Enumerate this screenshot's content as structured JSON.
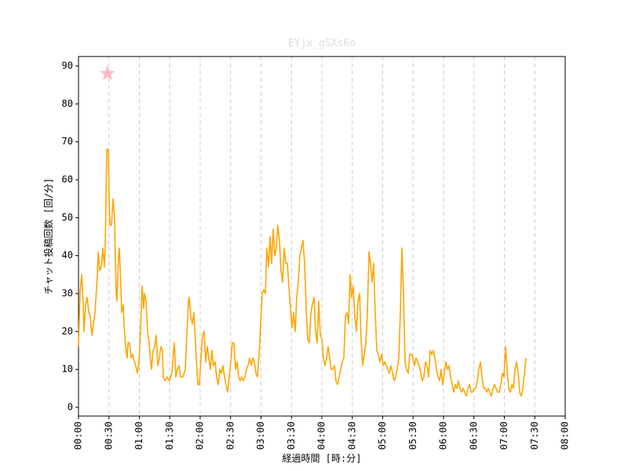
{
  "chart_data": {
    "type": "line",
    "title": "EYjx_gSXs6o",
    "x_label": "経過時間 [時:分]",
    "y_label": "チャット投稿回数 [回/分]",
    "color": "#ffa500",
    "grid": "x",
    "xlim": [
      0,
      480
    ],
    "ylim": [
      -2.3,
      92.5
    ],
    "xticks": [
      {
        "value": 0,
        "label": "00:00"
      },
      {
        "value": 30,
        "label": "00:30"
      },
      {
        "value": 60,
        "label": "01:00"
      },
      {
        "value": 90,
        "label": "01:30"
      },
      {
        "value": 120,
        "label": "02:00"
      },
      {
        "value": 150,
        "label": "02:30"
      },
      {
        "value": 180,
        "label": "03:00"
      },
      {
        "value": 210,
        "label": "03:30"
      },
      {
        "value": 240,
        "label": "04:00"
      },
      {
        "value": 270,
        "label": "04:30"
      },
      {
        "value": 300,
        "label": "05:00"
      },
      {
        "value": 330,
        "label": "05:30"
      },
      {
        "value": 360,
        "label": "06:00"
      },
      {
        "value": 390,
        "label": "06:30"
      },
      {
        "value": 420,
        "label": "07:00"
      },
      {
        "value": 450,
        "label": "07:30"
      },
      {
        "value": 480,
        "label": "08:00"
      }
    ],
    "yticks": [
      0,
      10,
      20,
      30,
      40,
      50,
      60,
      70,
      80,
      90
    ],
    "markers": [
      {
        "x": 28.6,
        "y": 88,
        "color": "#ffb6c1"
      }
    ],
    "x": [
      0,
      1.5,
      3.1,
      4.6,
      5.4,
      7.0,
      8.5,
      10.1,
      11.6,
      13.2,
      14.7,
      16.3,
      18.6,
      19.4,
      20.9,
      22.5,
      24.0,
      25.5,
      26.3,
      27.1,
      27.9,
      29.4,
      30.2,
      31.0,
      32.5,
      34.1,
      35.6,
      36.4,
      37.2,
      37.9,
      39.5,
      40.3,
      41.8,
      42.6,
      44.1,
      44.9,
      46.5,
      48.0,
      48.8,
      50.3,
      51.9,
      53.4,
      55.0,
      56.5,
      58.1,
      59.6,
      61.2,
      62.7,
      64.3,
      65.0,
      66.6,
      68.1,
      69.7,
      71.2,
      72.0,
      73.5,
      75.1,
      76.6,
      78.2,
      79.7,
      81.3,
      82.8,
      83.6,
      85.2,
      87.5,
      89.8,
      92.1,
      93.7,
      94.5,
      96.0,
      97.5,
      99.1,
      100.6,
      103.0,
      105.3,
      106.8,
      108.4,
      109.2,
      110.7,
      112.3,
      113.8,
      115.4,
      116.1,
      117.7,
      119.2,
      120.8,
      122.3,
      123.9,
      125.4,
      127.0,
      128.5,
      130.1,
      131.6,
      133.2,
      134.7,
      136.3,
      137.8,
      139.4,
      140.9,
      142.5,
      144.0,
      145.5,
      147.1,
      148.6,
      150.2,
      151.7,
      153.3,
      154.8,
      156.4,
      157.9,
      159.5,
      161.0,
      162.6,
      164.1,
      165.7,
      167.2,
      168.8,
      170.3,
      171.9,
      173.4,
      175.0,
      176.5,
      178.1,
      179.6,
      181.2,
      182.7,
      184.3,
      185.8,
      187.4,
      188.9,
      190.5,
      192.0,
      193.6,
      195.1,
      196.6,
      198.2,
      199.7,
      201.3,
      202.8,
      204.4,
      205.9,
      207.5,
      209.0,
      210.6,
      212.1,
      213.7,
      215.2,
      216.8,
      218.3,
      219.9,
      221.4,
      223.0,
      224.5,
      226.1,
      227.6,
      229.2,
      230.7,
      232.3,
      233.8,
      235.4,
      236.9,
      238.5,
      240.0,
      241.5,
      243.1,
      244.6,
      246.2,
      247.7,
      249.3,
      250.8,
      252.4,
      253.9,
      255.5,
      257.0,
      258.6,
      260.1,
      261.7,
      263.2,
      264.8,
      266.3,
      267.9,
      269.4,
      271.0,
      272.5,
      274.1,
      275.6,
      277.2,
      278.7,
      280.3,
      281.8,
      283.4,
      284.9,
      286.5,
      288.0,
      289.6,
      291.1,
      292.6,
      294.2,
      295.7,
      297.3,
      298.8,
      300.4,
      301.9,
      303.5,
      305.0,
      306.6,
      308.1,
      309.7,
      311.2,
      312.8,
      314.3,
      315.9,
      317.4,
      319.0,
      320.5,
      322.1,
      323.6,
      325.2,
      326.7,
      328.3,
      329.8,
      331.4,
      332.9,
      334.5,
      336.0,
      337.6,
      339.1,
      340.6,
      342.2,
      343.7,
      345.3,
      346.8,
      348.4,
      349.9,
      351.5,
      353.0,
      354.6,
      356.1,
      357.7,
      359.2,
      360.8,
      362.3,
      363.9,
      365.4,
      367.0,
      368.5,
      370.1,
      371.6,
      373.2,
      374.7,
      376.3,
      377.8,
      379.4,
      380.9,
      382.5,
      384.0,
      385.6,
      387.1,
      388.6,
      390.2,
      391.7,
      393.3,
      394.8,
      396.4,
      397.9,
      399.5,
      401.0,
      402.6,
      404.1,
      405.7,
      407.2,
      408.8,
      410.3,
      411.9,
      413.4,
      415.0,
      416.5,
      418.1,
      419.6,
      421.2,
      422.7,
      424.3,
      425.8,
      427.4,
      428.9,
      430.5,
      432.0,
      433.6,
      435.1,
      436.7,
      438.2,
      439.8,
      441.3
    ],
    "values": [
      16,
      30,
      35,
      28,
      20,
      27,
      29,
      25,
      24,
      19,
      22,
      25,
      35,
      41,
      36,
      37,
      42,
      37,
      42,
      55,
      68,
      68,
      55,
      48,
      48,
      55,
      50,
      38,
      30,
      28,
      40,
      42,
      32,
      25,
      27,
      22,
      16,
      13,
      17,
      17,
      13,
      14,
      12,
      11,
      9,
      12,
      20,
      32,
      26,
      30,
      28,
      20,
      17,
      12,
      10,
      15,
      16,
      19,
      11,
      13,
      16,
      15,
      8,
      7,
      8,
      7,
      9,
      15,
      17,
      8,
      10,
      11,
      8,
      8,
      10,
      19,
      28,
      29,
      24,
      22,
      25,
      17,
      13,
      6,
      6,
      13,
      19,
      20,
      12,
      16,
      13,
      10,
      15,
      11,
      12,
      8,
      6,
      10,
      9,
      11,
      8,
      6,
      4,
      8,
      12,
      17,
      17,
      10,
      12,
      8,
      7,
      8,
      7,
      8,
      10,
      11,
      13,
      11,
      13,
      12,
      9,
      8,
      14,
      22,
      30,
      31,
      30,
      42,
      37,
      45,
      38,
      47,
      40,
      42,
      48,
      44,
      36,
      33,
      42,
      38,
      38,
      32,
      26,
      21,
      25,
      20,
      29,
      33,
      40,
      42,
      44,
      38,
      26,
      18,
      17,
      25,
      27,
      29,
      20,
      17,
      28,
      19,
      18,
      13,
      11,
      13,
      16,
      13,
      10,
      10,
      11,
      7,
      6,
      8,
      10,
      12,
      13,
      24,
      25,
      22,
      35,
      29,
      32,
      24,
      20,
      28,
      30,
      18,
      11,
      14,
      17,
      25,
      41,
      38,
      33,
      38,
      25,
      15,
      14,
      12,
      14,
      11,
      12,
      11,
      10,
      9,
      11,
      9,
      7,
      8,
      10,
      13,
      25,
      42,
      30,
      12,
      10,
      9,
      14,
      14,
      13,
      11,
      13,
      12,
      11,
      9,
      7,
      8,
      12,
      11,
      8,
      15,
      14,
      15,
      13,
      10,
      8,
      7,
      10,
      6,
      9,
      12,
      10,
      11,
      8,
      6,
      4,
      6,
      5,
      7,
      5,
      4,
      5,
      4,
      3,
      5,
      6,
      4,
      4,
      5,
      5,
      7,
      10,
      12,
      8,
      5,
      5,
      4,
      5,
      4,
      3,
      5,
      6,
      5,
      4,
      4,
      6,
      9,
      8,
      16,
      10,
      5,
      4,
      6,
      5,
      10,
      12,
      9,
      4,
      3,
      5,
      9,
      13
    ]
  }
}
